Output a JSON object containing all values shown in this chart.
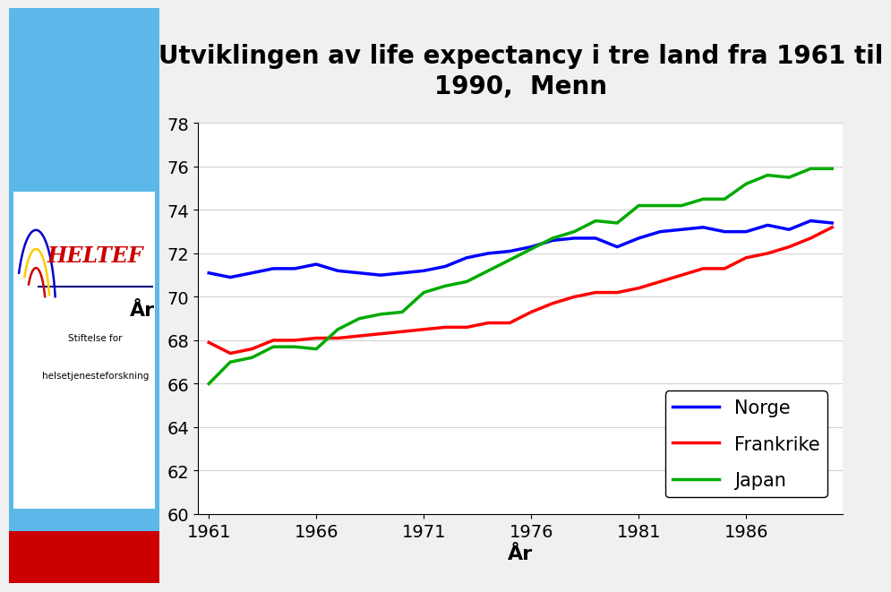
{
  "title_line1": "Utviklingen av life expectancy i tre land fra 1961 til",
  "title_line2": "1990,  Menn",
  "xlabel": "År",
  "ylabel": "År",
  "ylim": [
    60,
    78
  ],
  "xlim": [
    1961,
    1990
  ],
  "yticks": [
    60,
    62,
    64,
    66,
    68,
    70,
    72,
    74,
    76,
    78
  ],
  "xticks": [
    1961,
    1966,
    1971,
    1976,
    1981,
    1986
  ],
  "norge_color": "#0000FF",
  "frankrike_color": "#FF0000",
  "japan_color": "#00AA00",
  "background_color": "#FFFFFF",
  "left_panel_color": "#5BB8E8",
  "norge": {
    "years": [
      1961,
      1962,
      1963,
      1964,
      1965,
      1966,
      1967,
      1968,
      1969,
      1970,
      1971,
      1972,
      1973,
      1974,
      1975,
      1976,
      1977,
      1978,
      1979,
      1980,
      1981,
      1982,
      1983,
      1984,
      1985,
      1986,
      1987,
      1988,
      1989,
      1990
    ],
    "values": [
      71.1,
      70.9,
      71.1,
      71.3,
      71.3,
      71.5,
      71.2,
      71.1,
      71.0,
      71.1,
      71.2,
      71.4,
      71.8,
      72.0,
      72.1,
      72.3,
      72.6,
      72.7,
      72.7,
      72.3,
      72.7,
      73.0,
      73.1,
      73.2,
      73.0,
      73.0,
      73.3,
      73.1,
      73.5,
      73.4
    ]
  },
  "frankrike": {
    "years": [
      1961,
      1962,
      1963,
      1964,
      1965,
      1966,
      1967,
      1968,
      1969,
      1970,
      1971,
      1972,
      1973,
      1974,
      1975,
      1976,
      1977,
      1978,
      1979,
      1980,
      1981,
      1982,
      1983,
      1984,
      1985,
      1986,
      1987,
      1988,
      1989,
      1990
    ],
    "values": [
      67.9,
      67.4,
      67.6,
      68.0,
      68.0,
      68.1,
      68.1,
      68.2,
      68.3,
      68.4,
      68.5,
      68.6,
      68.6,
      68.8,
      68.8,
      69.3,
      69.7,
      70.0,
      70.2,
      70.2,
      70.4,
      70.7,
      71.0,
      71.3,
      71.3,
      71.8,
      72.0,
      72.3,
      72.7,
      73.2
    ]
  },
  "japan": {
    "years": [
      1961,
      1962,
      1963,
      1964,
      1965,
      1966,
      1967,
      1968,
      1969,
      1970,
      1971,
      1972,
      1973,
      1974,
      1975,
      1976,
      1977,
      1978,
      1979,
      1980,
      1981,
      1982,
      1983,
      1984,
      1985,
      1986,
      1987,
      1988,
      1989,
      1990
    ],
    "values": [
      66.0,
      67.0,
      67.2,
      67.7,
      67.7,
      67.6,
      68.5,
      69.0,
      69.2,
      69.3,
      70.2,
      70.5,
      70.7,
      71.2,
      71.7,
      72.2,
      72.7,
      73.0,
      73.5,
      73.4,
      74.2,
      74.2,
      74.2,
      74.5,
      74.5,
      75.2,
      75.6,
      75.5,
      75.9,
      75.9
    ]
  },
  "title_fontsize": 20,
  "axis_label_fontsize": 16,
  "tick_fontsize": 14,
  "legend_fontsize": 15
}
